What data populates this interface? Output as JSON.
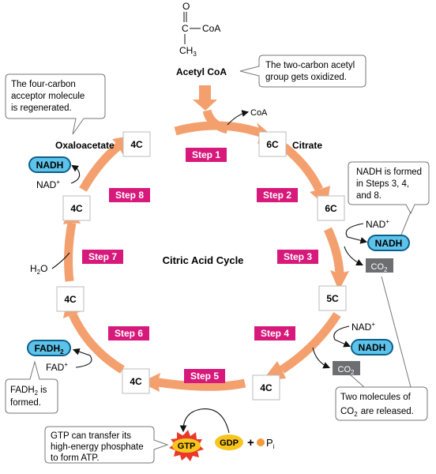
{
  "title": "Citric Acid Cycle",
  "acetyl_coa": {
    "label": "Acetyl CoA",
    "struct_O": "O",
    "struct_C": "C",
    "struct_CoA": "CoA",
    "struct_CH3": "CH",
    "struct_CH3_sub": "3"
  },
  "coa_out": "CoA",
  "molecules": {
    "oxaloacetate": "Oxaloacetate",
    "citrate": "Citrate"
  },
  "carbon_boxes": {
    "top_left": "4C",
    "top_right": "6C",
    "right_upper": "6C",
    "right_lower": "5C",
    "bottom_right": "4C",
    "bottom_left": "4C",
    "left_lower": "4C",
    "left_upper": "4C"
  },
  "steps": [
    "Step 1",
    "Step 2",
    "Step 3",
    "Step 4",
    "Step 5",
    "Step 6",
    "Step 7",
    "Step 8"
  ],
  "cofactors": {
    "nad": "NAD",
    "nad_sup": "+",
    "nadh": "NADH",
    "co2": "CO",
    "co2_sub": "2",
    "fad": "FAD",
    "fad_sup": "+",
    "fadh2": "FADH",
    "fadh2_sub": "2",
    "h2o": "H",
    "h2o_sub": "2",
    "h2o_o": "O",
    "gdp": "GDP",
    "plus": "+",
    "pi": "P",
    "pi_sub": "i",
    "gtp": "GTP"
  },
  "callouts": {
    "acetyl": [
      "The two-carbon acetyl",
      "group gets oxidized."
    ],
    "acceptor": [
      "The four-carbon",
      "acceptor molecule",
      "is regenerated."
    ],
    "nadh_formed": [
      "NADH is formed",
      "in Steps 3, 4,",
      "and 8."
    ],
    "co2_released": [
      "Two molecules of",
      "CO",
      "2",
      "are released."
    ],
    "fadh2_formed": [
      "FADH",
      "2",
      "is",
      "formed."
    ],
    "gtp_transfer": [
      "GTP can transfer its",
      "high-energy phosphate",
      "to form ATP."
    ]
  },
  "colors": {
    "cycle": "#f4a06e",
    "step_badge": "#d6197a",
    "nadh_fill": "#5ec3ea",
    "nadh_stroke": "#0b5f8a",
    "co2_fill": "#6d6e71",
    "gtp_fill": "#f7c51e",
    "gtp_burst": "#e8392b"
  }
}
